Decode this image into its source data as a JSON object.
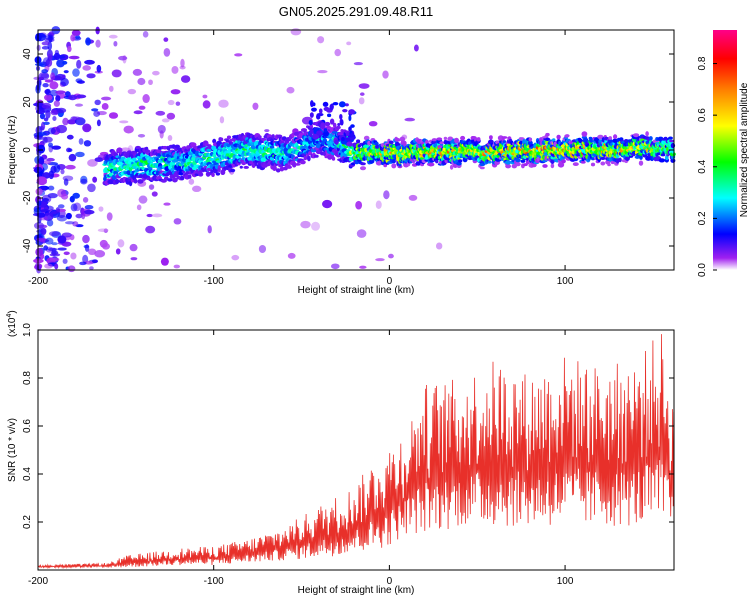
{
  "title": "GN05.2025.291.09.48.R11",
  "chart_data": [
    {
      "type": "heatmap",
      "name": "spectrogram",
      "xlabel": "Height of straight line (km)",
      "ylabel": "Frequency (Hz)",
      "xlim": [
        -200,
        162
      ],
      "ylim": [
        -50,
        50
      ],
      "xticks": [
        -200,
        -100,
        0,
        100
      ],
      "yticks": [
        -40,
        -20,
        0,
        20,
        40
      ],
      "xtick_labels": [
        "-200",
        "-100",
        "0",
        "100"
      ],
      "ytick_labels": [
        "-40",
        "-20",
        "0",
        "20",
        "40"
      ],
      "colorbar": {
        "label": "Normalized spectral amplitude",
        "range": [
          0,
          0.93
        ],
        "ticks": [
          0,
          0.2,
          0.4,
          0.6,
          0.8
        ],
        "tick_labels": [
          "0.0",
          "0.2",
          "0.4",
          "0.6",
          "0.8"
        ]
      },
      "ridge": {
        "description_points_x": [
          -160,
          -140,
          -120,
          -100,
          -80,
          -60,
          -40,
          -30,
          -20,
          0,
          50,
          100,
          150,
          162
        ],
        "center_freq": [
          -8,
          -6,
          -5,
          -3,
          0,
          -2,
          5,
          3,
          -1,
          -1,
          -1,
          0,
          1,
          0
        ],
        "peak_amplitude": [
          0.4,
          0.4,
          0.35,
          0.4,
          0.4,
          0.35,
          0.3,
          0.3,
          0.6,
          0.7,
          0.7,
          0.75,
          0.6,
          0.5
        ]
      }
    },
    {
      "type": "line",
      "name": "snr",
      "color": "#e8302a",
      "xlabel": "Height of straight line (km)",
      "ylabel": "SNR (10 * v/v)",
      "scale_label": "(x10",
      "scale_exp": "4",
      "scale_close": ")",
      "xlim": [
        -200,
        162
      ],
      "ylim": [
        0,
        1.0
      ],
      "xticks": [
        -200,
        -100,
        0,
        100
      ],
      "yticks": [
        0.2,
        0.4,
        0.6,
        0.8,
        1.0
      ],
      "xtick_labels": [
        "-200",
        "-100",
        "0",
        "100"
      ],
      "ytick_labels": [
        "0.2",
        "0.4",
        "0.6",
        "0.8",
        "1.0"
      ],
      "envelope_x": [
        -200,
        -160,
        -150,
        -120,
        -100,
        -80,
        -60,
        -40,
        -20,
        -10,
        0,
        10,
        20,
        40,
        60,
        80,
        100,
        120,
        140,
        155,
        162
      ],
      "envelope_low": [
        0.01,
        0.01,
        0.01,
        0.02,
        0.02,
        0.03,
        0.04,
        0.05,
        0.07,
        0.08,
        0.1,
        0.15,
        0.15,
        0.18,
        0.18,
        0.18,
        0.18,
        0.18,
        0.18,
        0.18,
        0.18
      ],
      "envelope_high": [
        0.02,
        0.03,
        0.06,
        0.09,
        0.1,
        0.13,
        0.18,
        0.27,
        0.35,
        0.45,
        0.52,
        0.6,
        0.78,
        0.8,
        0.88,
        0.82,
        0.9,
        0.85,
        0.88,
        1.0,
        0.7
      ]
    }
  ]
}
